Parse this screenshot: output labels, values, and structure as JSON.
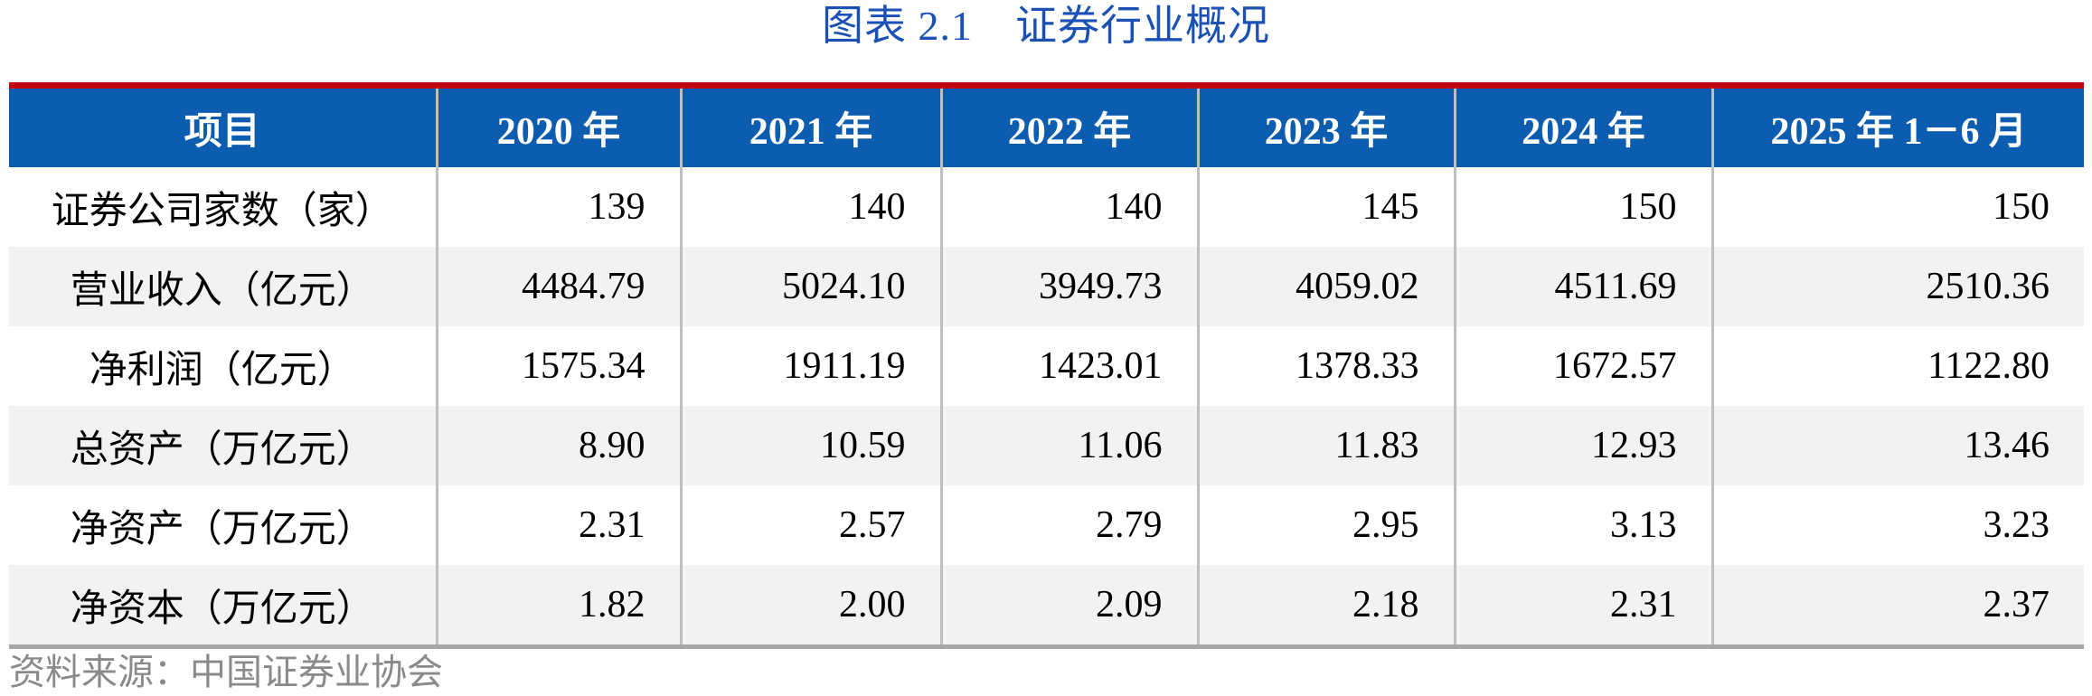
{
  "title": "图表 2.1　证券行业概况",
  "table": {
    "columns": [
      "项目",
      "2020 年",
      "2021 年",
      "2022 年",
      "2023 年",
      "2024 年",
      "2025 年 1－6 月"
    ],
    "rows": [
      {
        "label": "证券公司家数（家）",
        "values": [
          "139",
          "140",
          "140",
          "145",
          "150",
          "150"
        ]
      },
      {
        "label": "营业收入（亿元）",
        "values": [
          "4484.79",
          "5024.10",
          "3949.73",
          "4059.02",
          "4511.69",
          "2510.36"
        ]
      },
      {
        "label": "净利润（亿元）",
        "values": [
          "1575.34",
          "1911.19",
          "1423.01",
          "1378.33",
          "1672.57",
          "1122.80"
        ]
      },
      {
        "label": "总资产（万亿元）",
        "values": [
          "8.90",
          "10.59",
          "11.06",
          "11.83",
          "12.93",
          "13.46"
        ]
      },
      {
        "label": "净资产（万亿元）",
        "values": [
          "2.31",
          "2.57",
          "2.79",
          "2.95",
          "3.13",
          "3.23"
        ]
      },
      {
        "label": "净资本（万亿元）",
        "values": [
          "1.82",
          "2.00",
          "2.09",
          "2.18",
          "2.31",
          "2.37"
        ]
      }
    ]
  },
  "source_note": "资料来源：中国证券业协会",
  "colors": {
    "title_blue": "#1b51b4",
    "header_bg": "#0c5cb0",
    "accent_red": "#c00410",
    "row_alt": "#f2f2f2",
    "grid_line": "#bfbfbf",
    "bottom_border": "#a6a6a6",
    "source_gray": "#8a8a8a"
  }
}
